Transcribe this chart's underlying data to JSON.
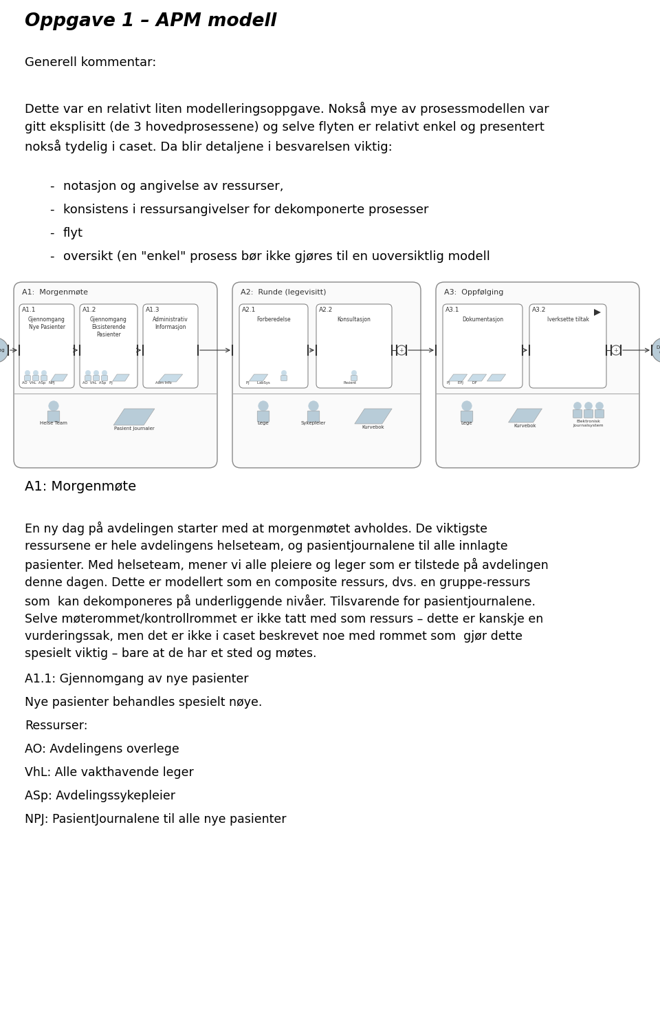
{
  "title": "Oppgave 1 – APM modell",
  "background_color": "#ffffff",
  "text_color": "#000000",
  "light_blue": "#c8dce8",
  "light_blue2": "#b8ccd8",
  "diagram_border": "#aaaaaa",
  "sub_border": "#888888"
}
